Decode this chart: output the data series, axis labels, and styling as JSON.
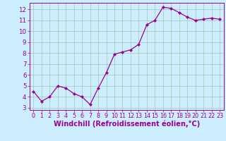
{
  "x": [
    0,
    1,
    2,
    3,
    4,
    5,
    6,
    7,
    8,
    9,
    10,
    11,
    12,
    13,
    14,
    15,
    16,
    17,
    18,
    19,
    20,
    21,
    22,
    23
  ],
  "y": [
    4.5,
    3.6,
    4.0,
    5.0,
    4.8,
    4.3,
    4.0,
    3.3,
    4.8,
    6.2,
    7.9,
    8.1,
    8.3,
    8.8,
    10.6,
    11.0,
    12.2,
    12.1,
    11.7,
    11.3,
    11.0,
    11.1,
    11.2,
    11.1
  ],
  "line_color": "#990099",
  "marker": "D",
  "marker_size": 2.2,
  "bg_color": "#cceeff",
  "grid_color": "#aaccbb",
  "xlabel": "Windchill (Refroidissement éolien,°C)",
  "xlim": [
    -0.5,
    23.5
  ],
  "ylim": [
    2.8,
    12.6
  ],
  "yticks": [
    3,
    4,
    5,
    6,
    7,
    8,
    9,
    10,
    11,
    12
  ],
  "xticks": [
    0,
    1,
    2,
    3,
    4,
    5,
    6,
    7,
    8,
    9,
    10,
    11,
    12,
    13,
    14,
    15,
    16,
    17,
    18,
    19,
    20,
    21,
    22,
    23
  ],
  "tick_color": "#990099",
  "label_color": "#990099",
  "tick_fontsize": 5.8,
  "xlabel_fontsize": 7.0
}
